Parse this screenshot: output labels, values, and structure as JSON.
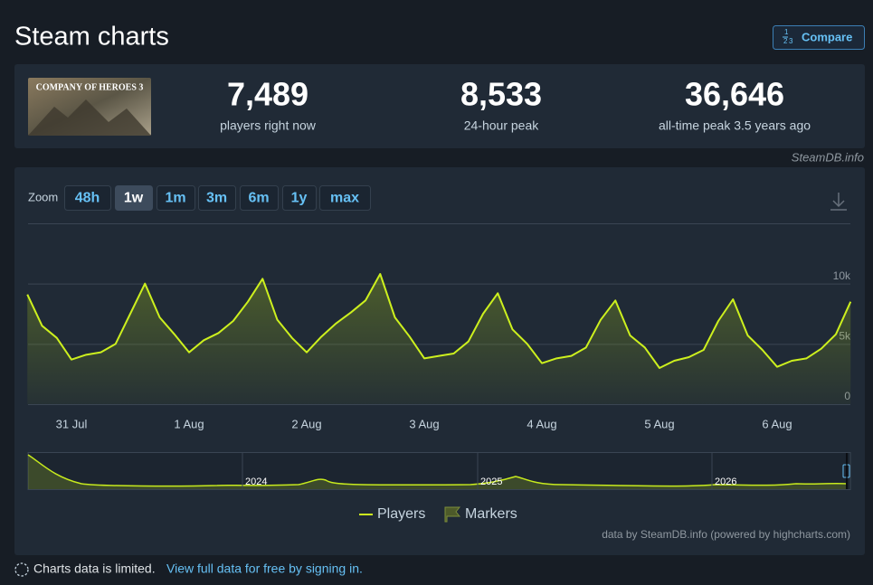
{
  "header": {
    "title": "Steam charts",
    "compare": "Compare"
  },
  "game": {
    "image_text": "COMPANY OF HEROES 3"
  },
  "stats": [
    {
      "value": "7,489",
      "label": "players right now"
    },
    {
      "value": "8,533",
      "label": "24-hour peak"
    },
    {
      "value": "36,646",
      "label": "all-time peak 3.5 years ago"
    }
  ],
  "source": "SteamDB.info",
  "zoom": {
    "label": "Zoom",
    "options": [
      "48h",
      "1w",
      "1m",
      "3m",
      "6m",
      "1y",
      "max"
    ]
  },
  "chart_data": {
    "type": "line",
    "categories": [
      null,
      null,
      null,
      "31 Jul",
      null,
      null,
      null,
      null,
      null,
      null,
      null,
      "1 Aug",
      null,
      null,
      null,
      null,
      null,
      null,
      null,
      "2 Aug",
      null,
      null,
      null,
      null,
      null,
      null,
      null,
      "3 Aug",
      null,
      null,
      null,
      null,
      null,
      null,
      null,
      "4 Aug",
      null,
      null,
      null,
      null,
      null,
      null,
      null,
      "5 Aug",
      null,
      null,
      null,
      null,
      null,
      null,
      null,
      "6 Aug",
      null,
      null,
      null,
      null,
      null
    ],
    "series": [
      {
        "name": "Players",
        "color": "#cdf01e",
        "values": [
          9100,
          6500,
          5500,
          3700,
          4100,
          4300,
          5000,
          7500,
          10000,
          7200,
          5800,
          4300,
          5300,
          5900,
          6900,
          8500,
          10400,
          7000,
          5500,
          4300,
          5600,
          6700,
          7600,
          8600,
          10800,
          7200,
          5600,
          3800,
          4000,
          4200,
          5200,
          7500,
          9200,
          6200,
          5000,
          3400,
          3800,
          4000,
          4700,
          7000,
          8600,
          5700,
          4700,
          3000,
          3600,
          3900,
          4500,
          6900,
          8700,
          5700,
          4500,
          3100,
          3600,
          3800,
          4600,
          5800,
          8500
        ]
      }
    ],
    "ylim": [
      0,
      15000
    ],
    "yticks": [
      0,
      {
        "value": 5000,
        "label": "5k"
      },
      {
        "value": 10000,
        "label": "10k"
      }
    ],
    "grid": true
  },
  "navigator": {
    "labels": [
      "2024",
      "2025",
      "2026"
    ]
  },
  "legend_markers": "Markers",
  "credit": "data by SteamDB.info (powered by highcharts.com)",
  "footer": {
    "notice": "Charts data is limited.",
    "link": "View full data for free by signing in."
  }
}
